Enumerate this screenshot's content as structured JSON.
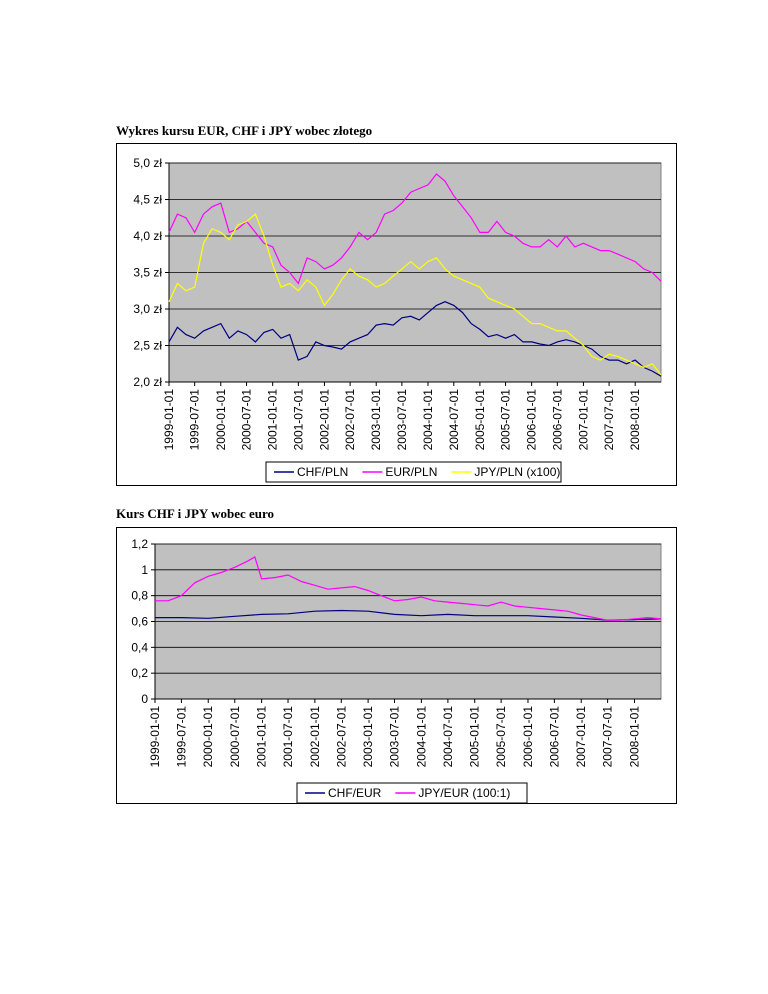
{
  "headings": {
    "chart1": "Wykres kursu EUR, CHF i JPY wobec złotego",
    "chart2": "Kurs CHF i JPY wobec euro"
  },
  "chart_data": [
    {
      "type": "line",
      "title": "Wykres kursu EUR, CHF i JPY wobec złotego",
      "xlabel": "",
      "ylabel": "",
      "ylim": [
        2.0,
        5.0
      ],
      "yticks": [
        2.0,
        2.5,
        3.0,
        3.5,
        4.0,
        4.5,
        5.0
      ],
      "ytick_labels": [
        "2,0 zł",
        "2,5 zł",
        "3,0 zł",
        "3,5 zł",
        "4,0 zł",
        "4,5 zł",
        "5,0 zł"
      ],
      "x_ticks": [
        "1999-01-01",
        "1999-07-01",
        "2000-01-01",
        "2000-07-01",
        "2001-01-01",
        "2001-07-01",
        "2002-01-01",
        "2002-07-01",
        "2003-01-01",
        "2003-07-01",
        "2004-01-01",
        "2004-07-01",
        "2005-01-01",
        "2005-07-01",
        "2006-01-01",
        "2006-07-01",
        "2007-01-01",
        "2007-07-01",
        "2008-01-01"
      ],
      "x_range": [
        "1999-01-01",
        "2008-07-01"
      ],
      "grid": true,
      "legend": "bottom",
      "plot_background": "#c0c0c0",
      "series": [
        {
          "name": "CHF/PLN",
          "color": "#000080",
          "x": [
            "1999-01-01",
            "1999-03-01",
            "1999-05-01",
            "1999-07-01",
            "1999-09-01",
            "1999-11-01",
            "2000-01-01",
            "2000-03-01",
            "2000-05-01",
            "2000-07-01",
            "2000-09-01",
            "2000-11-01",
            "2001-01-01",
            "2001-03-01",
            "2001-05-01",
            "2001-07-01",
            "2001-09-01",
            "2001-11-01",
            "2002-01-01",
            "2002-03-01",
            "2002-05-01",
            "2002-07-01",
            "2002-09-01",
            "2002-11-01",
            "2003-01-01",
            "2003-03-01",
            "2003-05-01",
            "2003-07-01",
            "2003-09-01",
            "2003-11-01",
            "2004-01-01",
            "2004-03-01",
            "2004-05-01",
            "2004-07-01",
            "2004-09-01",
            "2004-11-01",
            "2005-01-01",
            "2005-03-01",
            "2005-05-01",
            "2005-07-01",
            "2005-09-01",
            "2005-11-01",
            "2006-01-01",
            "2006-03-01",
            "2006-05-01",
            "2006-07-01",
            "2006-09-01",
            "2006-11-01",
            "2007-01-01",
            "2007-03-01",
            "2007-05-01",
            "2007-07-01",
            "2007-09-01",
            "2007-11-01",
            "2008-01-01",
            "2008-03-01",
            "2008-05-01",
            "2008-07-01"
          ],
          "values": [
            2.55,
            2.75,
            2.65,
            2.6,
            2.7,
            2.75,
            2.8,
            2.6,
            2.7,
            2.65,
            2.55,
            2.68,
            2.72,
            2.6,
            2.65,
            2.3,
            2.35,
            2.55,
            2.5,
            2.48,
            2.45,
            2.55,
            2.6,
            2.65,
            2.78,
            2.8,
            2.78,
            2.88,
            2.9,
            2.85,
            2.95,
            3.05,
            3.1,
            3.05,
            2.95,
            2.8,
            2.72,
            2.62,
            2.65,
            2.6,
            2.65,
            2.55,
            2.55,
            2.52,
            2.5,
            2.55,
            2.58,
            2.55,
            2.5,
            2.45,
            2.35,
            2.3,
            2.3,
            2.25,
            2.3,
            2.2,
            2.15,
            2.08
          ]
        },
        {
          "name": "EUR/PLN",
          "color": "#ff00ff",
          "x": [
            "1999-01-01",
            "1999-03-01",
            "1999-05-01",
            "1999-07-01",
            "1999-09-01",
            "1999-11-01",
            "2000-01-01",
            "2000-03-01",
            "2000-05-01",
            "2000-07-01",
            "2000-09-01",
            "2000-11-01",
            "2001-01-01",
            "2001-03-01",
            "2001-05-01",
            "2001-07-01",
            "2001-09-01",
            "2001-11-01",
            "2002-01-01",
            "2002-03-01",
            "2002-05-01",
            "2002-07-01",
            "2002-09-01",
            "2002-11-01",
            "2003-01-01",
            "2003-03-01",
            "2003-05-01",
            "2003-07-01",
            "2003-09-01",
            "2003-11-01",
            "2004-01-01",
            "2004-03-01",
            "2004-05-01",
            "2004-07-01",
            "2004-09-01",
            "2004-11-01",
            "2005-01-01",
            "2005-03-01",
            "2005-05-01",
            "2005-07-01",
            "2005-09-01",
            "2005-11-01",
            "2006-01-01",
            "2006-03-01",
            "2006-05-01",
            "2006-07-01",
            "2006-09-01",
            "2006-11-01",
            "2007-01-01",
            "2007-03-01",
            "2007-05-01",
            "2007-07-01",
            "2007-09-01",
            "2007-11-01",
            "2008-01-01",
            "2008-03-01",
            "2008-05-01",
            "2008-07-01"
          ],
          "values": [
            4.05,
            4.3,
            4.25,
            4.05,
            4.3,
            4.4,
            4.45,
            4.05,
            4.1,
            4.2,
            4.05,
            3.9,
            3.85,
            3.6,
            3.5,
            3.35,
            3.7,
            3.65,
            3.55,
            3.6,
            3.7,
            3.85,
            4.05,
            3.95,
            4.05,
            4.3,
            4.35,
            4.45,
            4.6,
            4.65,
            4.7,
            4.85,
            4.75,
            4.55,
            4.4,
            4.25,
            4.05,
            4.05,
            4.2,
            4.05,
            4.0,
            3.9,
            3.85,
            3.85,
            3.95,
            3.85,
            4.0,
            3.85,
            3.9,
            3.85,
            3.8,
            3.8,
            3.75,
            3.7,
            3.65,
            3.55,
            3.5,
            3.38
          ]
        },
        {
          "name": "JPY/PLN (x100)",
          "color": "#ffff00",
          "x": [
            "1999-01-01",
            "1999-03-01",
            "1999-05-01",
            "1999-07-01",
            "1999-09-01",
            "1999-11-01",
            "2000-01-01",
            "2000-03-01",
            "2000-05-01",
            "2000-07-01",
            "2000-09-01",
            "2000-11-01",
            "2001-01-01",
            "2001-03-01",
            "2001-05-01",
            "2001-07-01",
            "2001-09-01",
            "2001-11-01",
            "2002-01-01",
            "2002-03-01",
            "2002-05-01",
            "2002-07-01",
            "2002-09-01",
            "2002-11-01",
            "2003-01-01",
            "2003-03-01",
            "2003-05-01",
            "2003-07-01",
            "2003-09-01",
            "2003-11-01",
            "2004-01-01",
            "2004-03-01",
            "2004-05-01",
            "2004-07-01",
            "2004-09-01",
            "2004-11-01",
            "2005-01-01",
            "2005-03-01",
            "2005-05-01",
            "2005-07-01",
            "2005-09-01",
            "2005-11-01",
            "2006-01-01",
            "2006-03-01",
            "2006-05-01",
            "2006-07-01",
            "2006-09-01",
            "2006-11-01",
            "2007-01-01",
            "2007-03-01",
            "2007-05-01",
            "2007-07-01",
            "2007-09-01",
            "2007-11-01",
            "2008-01-01",
            "2008-03-01",
            "2008-05-01",
            "2008-07-01"
          ],
          "values": [
            3.1,
            3.35,
            3.25,
            3.3,
            3.9,
            4.1,
            4.05,
            3.95,
            4.15,
            4.2,
            4.3,
            4.0,
            3.6,
            3.3,
            3.35,
            3.25,
            3.4,
            3.3,
            3.05,
            3.2,
            3.4,
            3.55,
            3.45,
            3.4,
            3.3,
            3.35,
            3.45,
            3.55,
            3.65,
            3.55,
            3.65,
            3.7,
            3.55,
            3.45,
            3.4,
            3.35,
            3.3,
            3.15,
            3.1,
            3.05,
            3.0,
            2.9,
            2.8,
            2.8,
            2.75,
            2.7,
            2.7,
            2.6,
            2.5,
            2.35,
            2.3,
            2.38,
            2.35,
            2.3,
            2.25,
            2.2,
            2.25,
            2.1
          ]
        }
      ]
    },
    {
      "type": "line",
      "title": "Kurs CHF i JPY wobec euro",
      "xlabel": "",
      "ylabel": "",
      "ylim": [
        0,
        1.2
      ],
      "yticks": [
        0,
        0.2,
        0.4,
        0.6,
        0.8,
        1.0,
        1.2
      ],
      "ytick_labels": [
        "0",
        "0,2",
        "0,4",
        "0,6",
        "0,8",
        "1",
        "1,2"
      ],
      "x_ticks": [
        "1999-01-01",
        "1999-07-01",
        "2000-01-01",
        "2000-07-01",
        "2001-01-01",
        "2001-07-01",
        "2002-01-01",
        "2002-07-01",
        "2003-01-01",
        "2003-07-01",
        "2004-01-01",
        "2004-07-01",
        "2005-01-01",
        "2005-07-01",
        "2006-01-01",
        "2006-07-01",
        "2007-01-01",
        "2007-07-01",
        "2008-01-01"
      ],
      "x_range": [
        "1999-01-01",
        "2008-07-01"
      ],
      "grid": true,
      "legend": "bottom",
      "plot_background": "#c0c0c0",
      "series": [
        {
          "name": "CHF/EUR",
          "color": "#000080",
          "x": [
            "1999-01-01",
            "1999-07-01",
            "2000-01-01",
            "2000-07-01",
            "2001-01-01",
            "2001-07-01",
            "2002-01-01",
            "2002-07-01",
            "2003-01-01",
            "2003-07-01",
            "2004-01-01",
            "2004-07-01",
            "2005-01-01",
            "2005-07-01",
            "2006-01-01",
            "2006-07-01",
            "2007-01-01",
            "2007-07-01",
            "2008-01-01",
            "2008-07-01"
          ],
          "values": [
            0.63,
            0.63,
            0.625,
            0.64,
            0.655,
            0.66,
            0.68,
            0.685,
            0.68,
            0.655,
            0.645,
            0.655,
            0.645,
            0.645,
            0.645,
            0.635,
            0.625,
            0.61,
            0.615,
            0.62
          ]
        },
        {
          "name": "JPY/EUR (100:1)",
          "color": "#ff00ff",
          "x": [
            "1999-01-01",
            "1999-04-01",
            "1999-07-01",
            "1999-10-01",
            "2000-01-01",
            "2000-04-01",
            "2000-07-01",
            "2000-10-01",
            "2000-11-15",
            "2001-01-01",
            "2001-04-01",
            "2001-07-01",
            "2001-10-01",
            "2002-01-01",
            "2002-04-01",
            "2002-07-01",
            "2002-10-01",
            "2003-01-01",
            "2003-04-01",
            "2003-07-01",
            "2003-10-01",
            "2004-01-01",
            "2004-04-01",
            "2004-07-01",
            "2004-10-01",
            "2005-01-01",
            "2005-04-01",
            "2005-07-01",
            "2005-10-01",
            "2006-01-01",
            "2006-04-01",
            "2006-07-01",
            "2006-10-01",
            "2007-01-01",
            "2007-04-01",
            "2007-07-01",
            "2007-10-01",
            "2008-01-01",
            "2008-04-01",
            "2008-07-01"
          ],
          "values": [
            0.76,
            0.76,
            0.8,
            0.9,
            0.95,
            0.98,
            1.02,
            1.07,
            1.1,
            0.93,
            0.94,
            0.96,
            0.91,
            0.88,
            0.85,
            0.86,
            0.87,
            0.84,
            0.8,
            0.76,
            0.77,
            0.79,
            0.76,
            0.75,
            0.74,
            0.73,
            0.72,
            0.75,
            0.72,
            0.71,
            0.7,
            0.69,
            0.68,
            0.65,
            0.63,
            0.61,
            0.61,
            0.62,
            0.63,
            0.62
          ]
        }
      ]
    }
  ]
}
